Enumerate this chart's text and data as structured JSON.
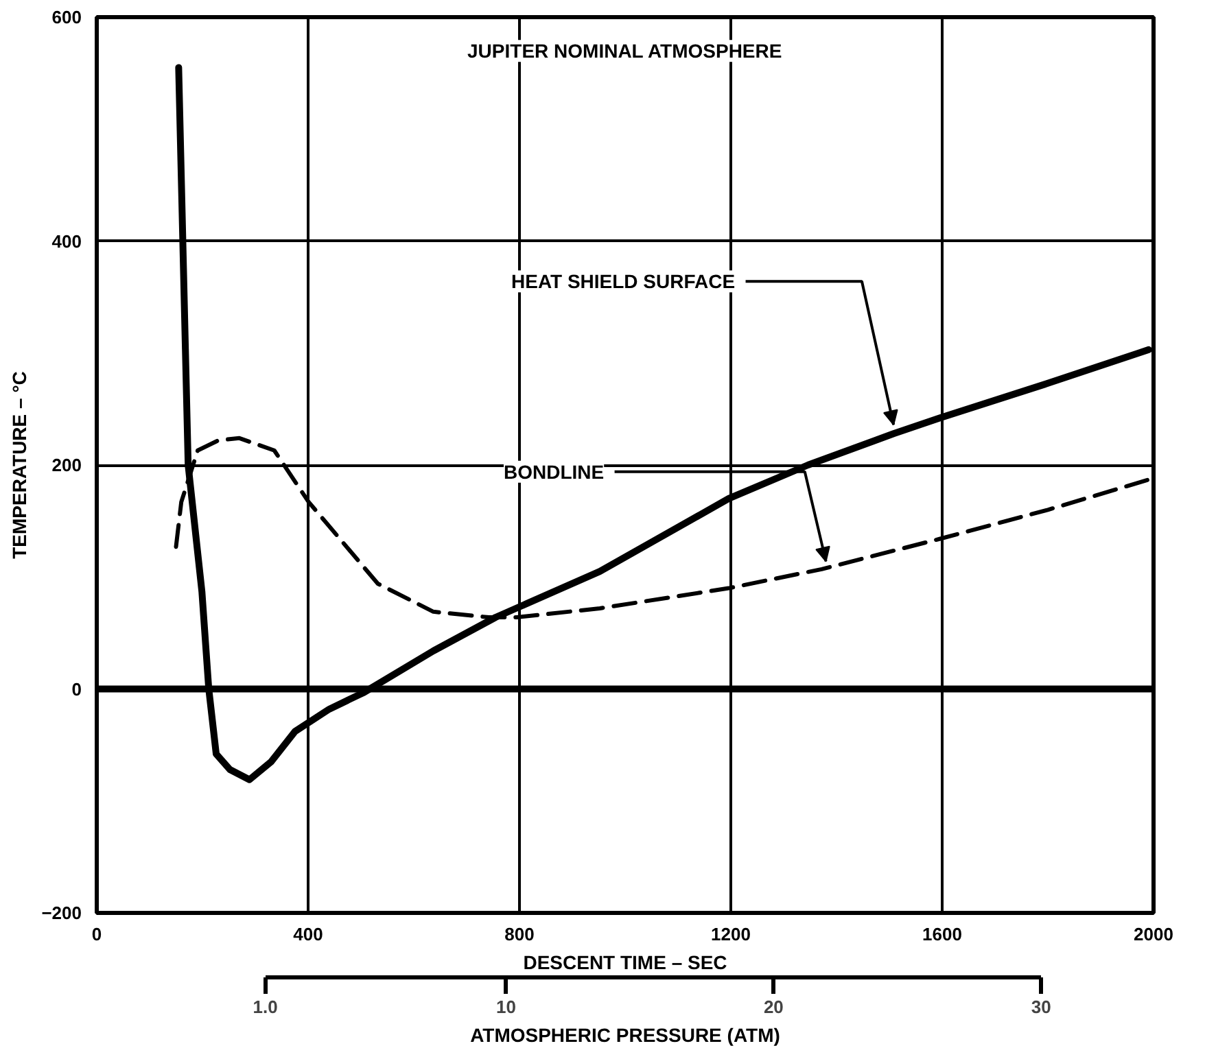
{
  "chart_data": {
    "type": "line",
    "xlabel": "DESCENT TIME – SEC",
    "ylabel": "TEMPERATURE – °C",
    "x2label": "ATMOSPHERIC PRESSURE (ATM)",
    "xlim": [
      0,
      2000
    ],
    "ylim": [
      -200,
      600
    ],
    "xticks": [
      0,
      400,
      800,
      1200,
      1600,
      2000
    ],
    "yticks": [
      -200,
      0,
      200,
      400,
      600
    ],
    "grid": true,
    "series": [
      {
        "color": "#000000",
        "line_style": "solid",
        "x": [
          155,
          173,
          199,
          212,
          226,
          252,
          289,
          330,
          375,
          440,
          506,
          637,
          755,
          952,
          1196,
          1346,
          1508,
          1595,
          1800,
          1991
        ],
        "values": [
          555,
          200,
          87,
          0,
          -58,
          -72,
          -81,
          -65,
          -38,
          -18,
          -3,
          34,
          64,
          105,
          170,
          200,
          228,
          242,
          273,
          303
        ]
      },
      {
        "color": "#000000",
        "line_style": "dashed",
        "x": [
          150,
          160,
          191,
          230,
          270,
          336,
          401,
          532,
          637,
          742,
          795,
          952,
          1196,
          1372,
          1595,
          1800,
          1991
        ],
        "values": [
          127,
          167,
          213,
          222,
          224,
          213,
          167,
          94,
          69,
          64,
          64,
          72,
          90,
          107,
          134,
          160,
          187
        ]
      }
    ],
    "ref_lines": [
      {
        "axis": "y",
        "value": 0,
        "label": null
      }
    ],
    "annotations": [
      "JUPITER NOMINAL ATMOSPHERE",
      {
        "text": "HEAT SHIELD SURFACE",
        "x": 1508,
        "y": 236
      },
      {
        "text": "BONDLINE",
        "x": 1380,
        "y": 114
      }
    ],
    "x2lim": [
      -5.3,
      34.2
    ],
    "x2ticks": [
      {
        "value": 1,
        "label": "1.0"
      },
      10,
      20,
      30
    ]
  }
}
